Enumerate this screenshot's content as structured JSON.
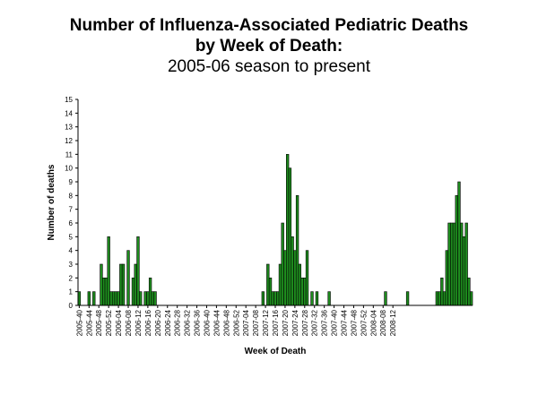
{
  "chart_data": {
    "type": "bar",
    "title": [
      "Number of Influenza-Associated Pediatric Deaths",
      "by Week of Death:",
      "2005-06 season to present"
    ],
    "xlabel": "Week of Death",
    "ylabel": "Number of deaths",
    "ylim": [
      0,
      15
    ],
    "yticks": [
      0,
      1,
      2,
      3,
      4,
      5,
      6,
      7,
      8,
      9,
      10,
      11,
      12,
      13,
      14,
      15
    ],
    "tick_labels": [
      "2005-40",
      "2005-44",
      "2005-48",
      "2005-52",
      "2006-04",
      "2006-08",
      "2006-12",
      "2006-16",
      "2006-20",
      "2006-24",
      "2006-28",
      "2006-32",
      "2006-36",
      "2006-40",
      "2006-44",
      "2006-48",
      "2006-52",
      "2007-04",
      "2007-08",
      "2007-12",
      "2007-16",
      "2007-20",
      "2007-24",
      "2007-28",
      "2007-32",
      "2007-36",
      "2007-40",
      "2007-44",
      "2007-48",
      "2007-52",
      "2008-04",
      "2008-08",
      "2008-12"
    ],
    "series": [
      {
        "name": "Deaths",
        "color": "#1e8c1e",
        "values": [
          1,
          0,
          0,
          0,
          1,
          0,
          1,
          0,
          0,
          3,
          2,
          2,
          5,
          1,
          1,
          1,
          1,
          3,
          3,
          0,
          4,
          0,
          2,
          3,
          5,
          1,
          0,
          1,
          1,
          2,
          1,
          1,
          0,
          0,
          0,
          0,
          0,
          0,
          0,
          0,
          0,
          0,
          0,
          0,
          0,
          0,
          0,
          0,
          0,
          0,
          0,
          0,
          0,
          0,
          0,
          0,
          0,
          0,
          0,
          0,
          0,
          0,
          0,
          0,
          0,
          0,
          0,
          0,
          0,
          0,
          0,
          0,
          0,
          0,
          0,
          1,
          0,
          3,
          2,
          1,
          1,
          1,
          3,
          6,
          4,
          11,
          10,
          5,
          4,
          8,
          3,
          2,
          2,
          4,
          0,
          1,
          0,
          1,
          0,
          0,
          0,
          0,
          1,
          0,
          0,
          0,
          0,
          0,
          0,
          0,
          0,
          0,
          0,
          0,
          0,
          0,
          0,
          0,
          0,
          0,
          0,
          0,
          0,
          0,
          0,
          1,
          0,
          0,
          0,
          0,
          0,
          0,
          0,
          0,
          1,
          0,
          0,
          0,
          0,
          0,
          0,
          0,
          0,
          0,
          0,
          0,
          1,
          1,
          2,
          1,
          4,
          6,
          6,
          6,
          8,
          9,
          6,
          5,
          6,
          2,
          1
        ]
      }
    ]
  }
}
